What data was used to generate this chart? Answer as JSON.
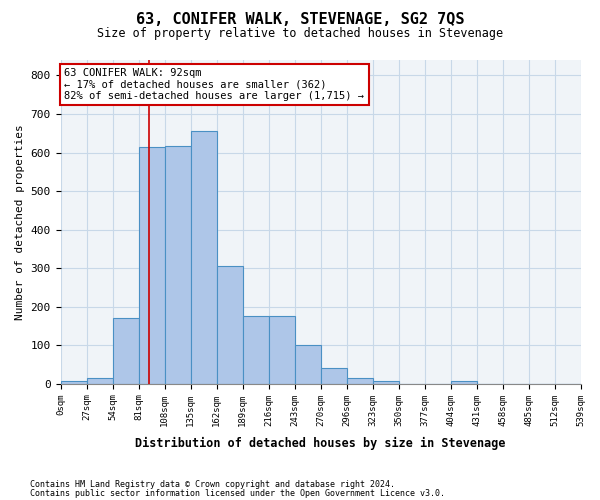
{
  "title": "63, CONIFER WALK, STEVENAGE, SG2 7QS",
  "subtitle": "Size of property relative to detached houses in Stevenage",
  "xlabel": "Distribution of detached houses by size in Stevenage",
  "ylabel": "Number of detached properties",
  "bar_color": "#aec6e8",
  "bar_edge_color": "#4a90c4",
  "grid_color": "#c8d8e8",
  "background_color": "#f0f4f8",
  "annotation_box_color": "#cc0000",
  "property_line_color": "#cc0000",
  "property_sqm": 92,
  "property_label": "63 CONIFER WALK: 92sqm",
  "annotation_line1": "← 17% of detached houses are smaller (362)",
  "annotation_line2": "82% of semi-detached houses are larger (1,715) →",
  "bin_edges": [
    0,
    27,
    54,
    81,
    108,
    135,
    162,
    189,
    216,
    243,
    270,
    297,
    324,
    351,
    378,
    405,
    432,
    459,
    486,
    513,
    540
  ],
  "bin_labels": [
    "0sqm",
    "27sqm",
    "54sqm",
    "81sqm",
    "108sqm",
    "135sqm",
    "162sqm",
    "189sqm",
    "216sqm",
    "243sqm",
    "270sqm",
    "296sqm",
    "323sqm",
    "350sqm",
    "377sqm",
    "404sqm",
    "431sqm",
    "458sqm",
    "485sqm",
    "512sqm",
    "539sqm"
  ],
  "bar_heights": [
    8,
    14,
    170,
    615,
    617,
    655,
    305,
    175,
    175,
    100,
    40,
    14,
    8,
    0,
    0,
    8,
    0,
    0,
    0,
    0
  ],
  "ylim": [
    0,
    840
  ],
  "yticks": [
    0,
    100,
    200,
    300,
    400,
    500,
    600,
    700,
    800
  ],
  "footer1": "Contains HM Land Registry data © Crown copyright and database right 2024.",
  "footer2": "Contains public sector information licensed under the Open Government Licence v3.0."
}
